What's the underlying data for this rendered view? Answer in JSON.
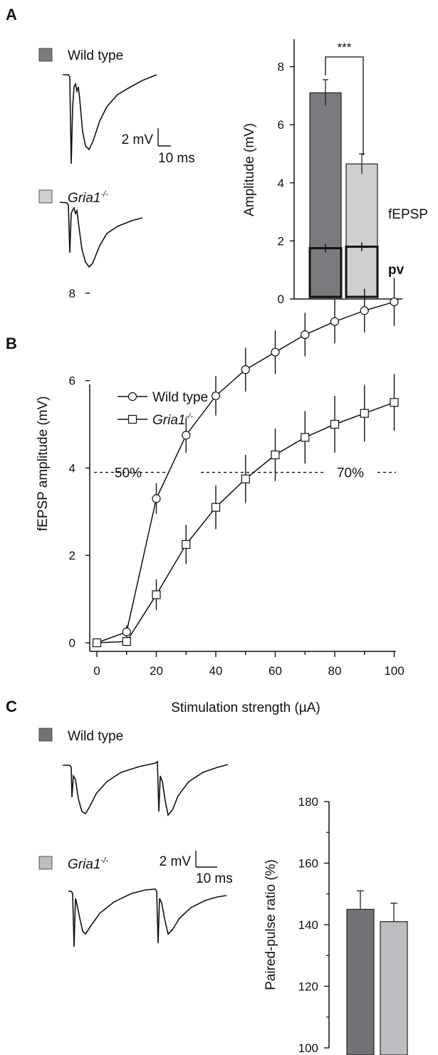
{
  "panels": {
    "a": "A",
    "b": "B",
    "c": "C"
  },
  "legend": {
    "wild_type": "Wild type",
    "gria1": "Gria1",
    "gria1_sup": "-/-",
    "colors": {
      "wild_type": "#7b7b7f",
      "gria1": "#cfcfd1",
      "wild_type_c": "#737377",
      "gria1_c": "#bdbdc1"
    }
  },
  "scalebars": {
    "a_mv": "2 mV",
    "a_ms": "10 ms",
    "c_mv": "2 mV",
    "c_ms": "10 ms"
  },
  "chart_data": [
    {
      "panel": "A",
      "type": "bar",
      "ylabel": "Amplitude (mV)",
      "ylim": [
        0,
        9
      ],
      "yticks": [
        "0",
        "2",
        "4",
        "6",
        "8"
      ],
      "categories": [
        "Wild type",
        "Gria1-/-"
      ],
      "series": [
        {
          "name": "fEPSP",
          "values": [
            7.1,
            4.65
          ],
          "errors": [
            0.45,
            0.35
          ]
        },
        {
          "name": "pv",
          "values": [
            1.75,
            1.8
          ],
          "errors": [
            0.15,
            0.15
          ]
        }
      ],
      "annotation": "***"
    },
    {
      "panel": "B",
      "type": "line",
      "xlabel": "Stimulation strength (µA)",
      "ylabel": "fEPSP amplitude  (mV)",
      "xlim": [
        -5,
        100
      ],
      "ylim": [
        -0.3,
        9
      ],
      "xticks": [
        "0",
        "20",
        "40",
        "60",
        "80",
        "100"
      ],
      "yticks": [
        "0",
        "2",
        "4",
        "6",
        "8"
      ],
      "x": [
        0,
        10,
        20,
        30,
        40,
        50,
        60,
        70,
        80,
        90,
        100
      ],
      "series": [
        {
          "name": "Wild type",
          "values": [
            0,
            0.25,
            3.3,
            4.75,
            5.65,
            6.25,
            6.65,
            7.05,
            7.35,
            7.6,
            7.8
          ],
          "errors": [
            0,
            0.15,
            0.35,
            0.4,
            0.45,
            0.5,
            0.5,
            0.5,
            0.5,
            0.5,
            0.55
          ]
        },
        {
          "name": "Gria1-/-",
          "values": [
            0,
            0.03,
            1.1,
            2.25,
            3.1,
            3.75,
            4.3,
            4.7,
            5.0,
            5.25,
            5.5
          ],
          "errors": [
            0,
            0.1,
            0.35,
            0.45,
            0.5,
            0.55,
            0.6,
            0.6,
            0.65,
            0.65,
            0.65
          ]
        }
      ],
      "reference_line": {
        "y": 3.9,
        "labels": [
          "50%",
          "70%"
        ]
      }
    },
    {
      "panel": "C",
      "type": "bar",
      "ylabel": "Paired-pulse ratio (%)",
      "ylim": [
        100,
        180
      ],
      "yticks": [
        "100",
        "120",
        "140",
        "160",
        "180"
      ],
      "categories": [
        "Wild type",
        "Gria1-/-"
      ],
      "values": [
        145,
        141
      ],
      "errors": [
        6,
        6
      ]
    }
  ]
}
